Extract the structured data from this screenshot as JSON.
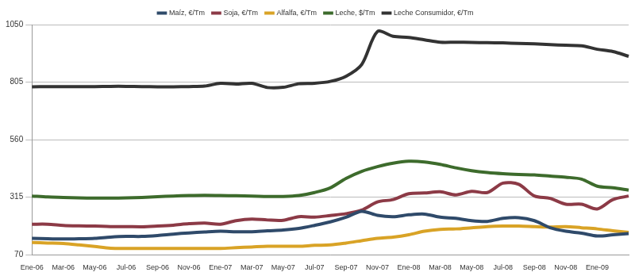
{
  "chart_data": {
    "type": "line",
    "categories": [
      "Ene-06",
      null,
      "Mar-06",
      null,
      "May-06",
      null,
      "Jul-06",
      null,
      "Sep-06",
      null,
      "Nov-06",
      null,
      "Ene-07",
      null,
      "Mar-07",
      null,
      "May-07",
      null,
      "Jul-07",
      null,
      "Sep-07",
      null,
      "Nov-07",
      null,
      "Ene-08",
      null,
      "Mar-08",
      null,
      "May-08",
      null,
      "Jul-08",
      null,
      "Sep-08",
      null,
      "Nov-08",
      null,
      "Ene-09",
      null,
      null
    ],
    "series": [
      {
        "name": "Maíz, €/Tm",
        "color": "#2f4a6a",
        "values": [
          140,
          138,
          137,
          138,
          140,
          145,
          148,
          148,
          152,
          158,
          163,
          167,
          170,
          168,
          168,
          172,
          175,
          182,
          195,
          210,
          230,
          255,
          238,
          232,
          240,
          243,
          230,
          225,
          215,
          212,
          225,
          228,
          215,
          185,
          170,
          162,
          150,
          155,
          160
        ]
      },
      {
        "name": "Soja, €/Tm",
        "color": "#8c3a46",
        "values": [
          200,
          200,
          195,
          193,
          192,
          190,
          190,
          189,
          192,
          196,
          202,
          205,
          200,
          215,
          222,
          218,
          217,
          232,
          230,
          237,
          245,
          260,
          295,
          305,
          330,
          333,
          338,
          325,
          340,
          335,
          375,
          370,
          320,
          310,
          285,
          285,
          265,
          305,
          320
        ]
      },
      {
        "name": "Alfalfa, €/Tm",
        "color": "#d9a326",
        "values": [
          122,
          120,
          118,
          112,
          105,
          98,
          97,
          97,
          97,
          97,
          97,
          97,
          97,
          100,
          103,
          106,
          106,
          106,
          110,
          112,
          120,
          130,
          140,
          145,
          155,
          170,
          178,
          180,
          185,
          190,
          192,
          192,
          190,
          188,
          190,
          185,
          180,
          172,
          165
        ]
      },
      {
        "name": "Leche, $/Tm",
        "color": "#3d6b2c",
        "values": [
          320,
          316,
          314,
          312,
          311,
          311,
          312,
          314,
          317,
          320,
          322,
          323,
          322,
          321,
          320,
          318,
          318,
          322,
          335,
          355,
          395,
          425,
          445,
          460,
          468,
          465,
          455,
          440,
          428,
          420,
          415,
          412,
          410,
          405,
          400,
          392,
          362,
          355,
          345
        ]
      },
      {
        "name": "Leche Consumidor, €/Tm",
        "color": "#333333",
        "values": [
          785,
          786,
          786,
          786,
          786,
          787,
          787,
          786,
          785,
          785,
          786,
          788,
          800,
          797,
          800,
          782,
          783,
          798,
          800,
          808,
          830,
          880,
          1020,
          1000,
          995,
          985,
          975,
          975,
          974,
          973,
          972,
          970,
          968,
          965,
          962,
          960,
          945,
          935,
          915
        ]
      }
    ],
    "ylim": [
      70,
      1050
    ],
    "yticks": [
      70,
      315,
      560,
      805,
      1050
    ],
    "grid": true,
    "legend": "top"
  }
}
